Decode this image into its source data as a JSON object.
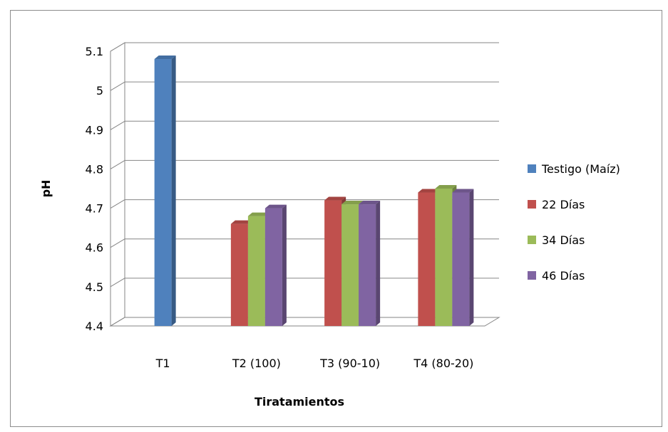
{
  "chart_data": {
    "type": "bar",
    "categories": [
      "T1",
      "T2 (100)",
      "T3 (90-10)",
      "T4 (80-20)"
    ],
    "series": [
      {
        "name": "Testigo (Maíz)",
        "values": [
          5.08,
          null,
          null,
          null
        ],
        "color": "#4f81bd"
      },
      {
        "name": "22 Días",
        "values": [
          null,
          4.66,
          4.72,
          4.74
        ],
        "color": "#c0504d"
      },
      {
        "name": "34 Días",
        "values": [
          null,
          4.68,
          4.71,
          4.75
        ],
        "color": "#9bbb59"
      },
      {
        "name": "46 Días",
        "values": [
          null,
          4.7,
          4.71,
          4.74
        ],
        "color": "#8064a2"
      }
    ],
    "ylim": [
      4.4,
      5.1
    ],
    "yticks": [
      "4.4",
      "4.5",
      "4.6",
      "4.7",
      "4.8",
      "4.9",
      "5",
      "5.1"
    ],
    "xlabel": "Tiratamientos",
    "ylabel": "pH",
    "grid": true,
    "legend_position": "right",
    "style": "3d-clustered-column"
  }
}
